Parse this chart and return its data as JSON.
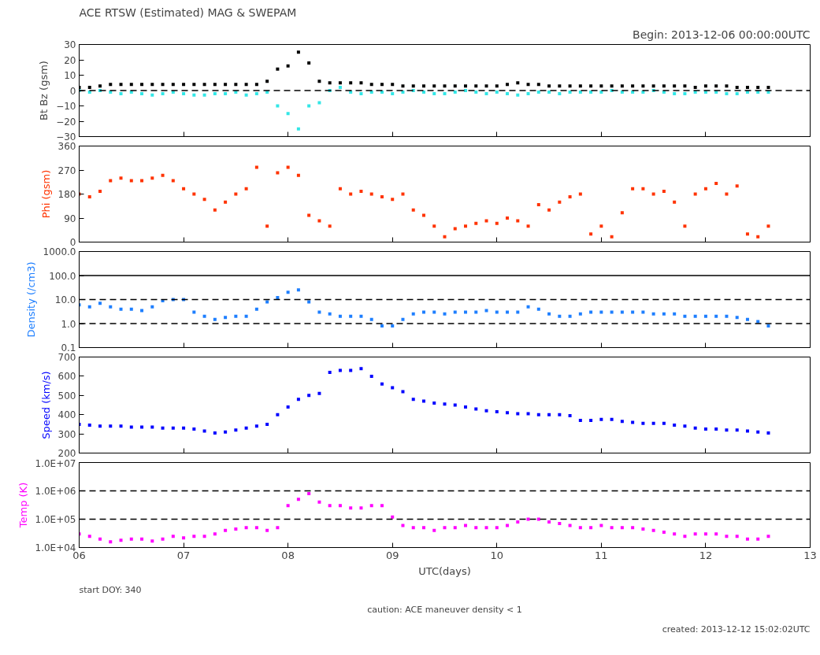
{
  "chart_data": [
    {
      "type": "scatter",
      "title": "ACE RTSW (Estimated) MAG & SWEPAM",
      "subtitle": "Begin: 2013-12-06 00:00:00UTC",
      "ylabel": "Bt Bz (gsm)",
      "marker": "square",
      "grid": false,
      "tick_labels": "y",
      "x": [
        6.0,
        6.1,
        6.2,
        6.3,
        6.4,
        6.5,
        6.6,
        6.7,
        6.8,
        6.9,
        7.0,
        7.1,
        7.2,
        7.3,
        7.4,
        7.5,
        7.6,
        7.7,
        7.8,
        7.9,
        8.0,
        8.1,
        8.2,
        8.3,
        8.4,
        8.5,
        8.6,
        8.7,
        8.8,
        8.9,
        9.0,
        9.1,
        9.2,
        9.3,
        9.4,
        9.5,
        9.6,
        9.7,
        9.8,
        9.9,
        10.0,
        10.1,
        10.2,
        10.3,
        10.4,
        10.5,
        10.6,
        10.7,
        10.8,
        10.9,
        11.0,
        11.1,
        11.2,
        11.3,
        11.4,
        11.5,
        11.6,
        11.7,
        11.8,
        11.9,
        12.0,
        12.1,
        12.2,
        12.3,
        12.4,
        12.5,
        12.6
      ],
      "xlim": [
        6,
        13
      ],
      "xticks": [
        6,
        7,
        8,
        9,
        10,
        11,
        12,
        13
      ],
      "ylim": [
        -30,
        30
      ],
      "yticks": [
        -30,
        -20,
        -10,
        0,
        10,
        20,
        30
      ],
      "ref_lines": [
        {
          "axis": "y",
          "value": 0,
          "line_style": "dashed",
          "color": "#000000"
        }
      ],
      "series": [
        {
          "color": "#000000",
          "values": [
            2,
            2,
            3,
            4,
            4,
            4,
            4,
            4,
            4,
            4,
            4,
            4,
            4,
            4,
            4,
            4,
            4,
            4,
            6,
            14,
            16,
            25,
            18,
            6,
            5,
            5,
            5,
            5,
            4,
            4,
            4,
            3,
            3,
            3,
            3,
            3,
            3,
            3,
            3,
            3,
            3,
            4,
            5,
            4,
            4,
            3,
            3,
            3,
            3,
            3,
            3,
            3,
            3,
            3,
            3,
            3,
            3,
            3,
            3,
            2,
            3,
            3,
            3,
            2,
            2,
            2,
            2
          ]
        },
        {
          "color": "#33e6e6",
          "values": [
            0,
            -1,
            0,
            -1,
            -2,
            -1,
            -2,
            -3,
            -2,
            -1,
            -2,
            -3,
            -3,
            -2,
            -2,
            -1,
            -3,
            -2,
            -1,
            -10,
            -15,
            -25,
            -10,
            -8,
            0,
            2,
            -1,
            -2,
            -1,
            -1,
            -2,
            -1,
            0,
            -1,
            -2,
            -2,
            -1,
            0,
            -1,
            -2,
            -1,
            -2,
            -3,
            -2,
            -1,
            -1,
            -2,
            -1,
            -1,
            -1,
            -1,
            0,
            -1,
            -1,
            -1,
            0,
            -1,
            -2,
            -2,
            -1,
            -1,
            -1,
            -2,
            -2,
            -1,
            -1,
            -1
          ]
        }
      ]
    },
    {
      "type": "scatter",
      "ylabel": "Phi (gsm)",
      "marker": "square",
      "grid": false,
      "tick_labels": "y",
      "x": [
        6.0,
        6.1,
        6.2,
        6.3,
        6.4,
        6.5,
        6.6,
        6.7,
        6.8,
        6.9,
        7.0,
        7.1,
        7.2,
        7.3,
        7.4,
        7.5,
        7.6,
        7.7,
        7.8,
        7.9,
        8.0,
        8.1,
        8.2,
        8.3,
        8.4,
        8.5,
        8.6,
        8.7,
        8.8,
        8.9,
        9.0,
        9.1,
        9.2,
        9.3,
        9.4,
        9.5,
        9.6,
        9.7,
        9.8,
        9.9,
        10.0,
        10.1,
        10.2,
        10.3,
        10.4,
        10.5,
        10.6,
        10.7,
        10.8,
        10.9,
        11.0,
        11.1,
        11.2,
        11.3,
        11.4,
        11.5,
        11.6,
        11.7,
        11.8,
        11.9,
        12.0,
        12.1,
        12.2,
        12.3,
        12.4,
        12.5,
        12.6
      ],
      "xlim": [
        6,
        13
      ],
      "xticks": [
        6,
        7,
        8,
        9,
        10,
        11,
        12,
        13
      ],
      "ylim": [
        0,
        360
      ],
      "yticks": [
        0,
        90,
        180,
        270,
        360
      ],
      "series": [
        {
          "color": "#ff3300",
          "values": [
            180,
            170,
            190,
            230,
            240,
            230,
            230,
            240,
            250,
            230,
            200,
            180,
            160,
            120,
            150,
            180,
            200,
            280,
            60,
            260,
            280,
            250,
            100,
            80,
            60,
            200,
            180,
            190,
            180,
            170,
            160,
            180,
            120,
            100,
            60,
            20,
            50,
            60,
            70,
            80,
            70,
            90,
            80,
            60,
            140,
            120,
            150,
            170,
            180,
            30,
            60,
            20,
            110,
            200,
            200,
            180,
            190,
            150,
            60,
            180,
            200,
            220,
            180,
            210,
            30,
            20,
            60
          ]
        }
      ]
    },
    {
      "type": "scatter",
      "ylabel": "Density (/cm3)",
      "marker": "square",
      "grid": false,
      "tick_labels": "y",
      "log": "y",
      "x": [
        6.0,
        6.1,
        6.2,
        6.3,
        6.4,
        6.5,
        6.6,
        6.7,
        6.8,
        6.9,
        7.0,
        7.1,
        7.2,
        7.3,
        7.4,
        7.5,
        7.6,
        7.7,
        7.8,
        7.9,
        8.0,
        8.1,
        8.2,
        8.3,
        8.4,
        8.5,
        8.6,
        8.7,
        8.8,
        8.9,
        9.0,
        9.1,
        9.2,
        9.3,
        9.4,
        9.5,
        9.6,
        9.7,
        9.8,
        9.9,
        10.0,
        10.1,
        10.2,
        10.3,
        10.4,
        10.5,
        10.6,
        10.7,
        10.8,
        10.9,
        11.0,
        11.1,
        11.2,
        11.3,
        11.4,
        11.5,
        11.6,
        11.7,
        11.8,
        11.9,
        12.0,
        12.1,
        12.2,
        12.3,
        12.4,
        12.5,
        12.6
      ],
      "xlim": [
        6,
        13
      ],
      "xticks": [
        6,
        7,
        8,
        9,
        10,
        11,
        12,
        13
      ],
      "ylim": [
        0.1,
        1000
      ],
      "yticks": [
        {
          "value": 0.1,
          "label": "0.1"
        },
        {
          "value": 1,
          "label": "1.0"
        },
        {
          "value": 10,
          "label": "10.0"
        },
        {
          "value": 100,
          "label": "100.0"
        },
        {
          "value": 1000,
          "label": "1000.0"
        }
      ],
      "ref_lines": [
        {
          "axis": "y",
          "value": 1,
          "line_style": "dashed",
          "color": "#000000"
        },
        {
          "axis": "y",
          "value": 10,
          "line_style": "dashed",
          "color": "#000000"
        },
        {
          "axis": "y",
          "value": 100,
          "line_style": "solid",
          "color": "#000000"
        }
      ],
      "series": [
        {
          "color": "#1e7fff",
          "values": [
            6,
            5,
            7,
            5,
            4,
            4,
            3.5,
            5,
            9,
            10,
            10,
            3,
            2,
            1.5,
            1.8,
            2,
            2,
            4,
            8,
            12,
            20,
            25,
            8,
            3,
            2.5,
            2,
            2,
            2,
            1.5,
            0.8,
            0.8,
            1.5,
            2.5,
            3,
            3,
            2.5,
            3,
            3,
            3,
            3.5,
            3,
            3,
            3,
            5,
            4,
            2.5,
            2,
            2,
            2.5,
            3,
            3,
            3,
            3,
            3,
            3,
            2.5,
            2.5,
            2.5,
            2,
            2,
            2,
            2,
            2,
            1.8,
            1.5,
            1.2,
            0.8
          ]
        }
      ]
    },
    {
      "type": "scatter",
      "ylabel": "Speed (km/s)",
      "marker": "square",
      "grid": false,
      "tick_labels": "y",
      "x": [
        6.0,
        6.1,
        6.2,
        6.3,
        6.4,
        6.5,
        6.6,
        6.7,
        6.8,
        6.9,
        7.0,
        7.1,
        7.2,
        7.3,
        7.4,
        7.5,
        7.6,
        7.7,
        7.8,
        7.9,
        8.0,
        8.1,
        8.2,
        8.3,
        8.4,
        8.5,
        8.6,
        8.7,
        8.8,
        8.9,
        9.0,
        9.1,
        9.2,
        9.3,
        9.4,
        9.5,
        9.6,
        9.7,
        9.8,
        9.9,
        10.0,
        10.1,
        10.2,
        10.3,
        10.4,
        10.5,
        10.6,
        10.7,
        10.8,
        10.9,
        11.0,
        11.1,
        11.2,
        11.3,
        11.4,
        11.5,
        11.6,
        11.7,
        11.8,
        11.9,
        12.0,
        12.1,
        12.2,
        12.3,
        12.4,
        12.5,
        12.6
      ],
      "xlim": [
        6,
        13
      ],
      "xticks": [
        6,
        7,
        8,
        9,
        10,
        11,
        12,
        13
      ],
      "ylim": [
        200,
        700
      ],
      "yticks": [
        200,
        300,
        400,
        500,
        600,
        700
      ],
      "series": [
        {
          "color": "#0000ff",
          "values": [
            350,
            345,
            340,
            340,
            340,
            335,
            335,
            335,
            330,
            330,
            330,
            325,
            315,
            305,
            310,
            320,
            330,
            340,
            350,
            400,
            440,
            480,
            500,
            510,
            620,
            630,
            630,
            640,
            600,
            560,
            540,
            520,
            480,
            470,
            460,
            455,
            450,
            440,
            430,
            420,
            415,
            410,
            405,
            405,
            400,
            400,
            400,
            395,
            370,
            370,
            375,
            375,
            365,
            360,
            355,
            355,
            355,
            345,
            340,
            330,
            325,
            325,
            320,
            320,
            315,
            310,
            305
          ]
        }
      ]
    },
    {
      "type": "scatter",
      "ylabel": "Temp (K)",
      "xlabel": "UTC(days)",
      "marker": "square",
      "grid": false,
      "log": "y",
      "annotations": [
        "start DOY: 340",
        "caution: ACE maneuver density < 1",
        "created: 2013-12-12 15:02:02UTC"
      ],
      "x": [
        6.0,
        6.1,
        6.2,
        6.3,
        6.4,
        6.5,
        6.6,
        6.7,
        6.8,
        6.9,
        7.0,
        7.1,
        7.2,
        7.3,
        7.4,
        7.5,
        7.6,
        7.7,
        7.8,
        7.9,
        8.0,
        8.1,
        8.2,
        8.3,
        8.4,
        8.5,
        8.6,
        8.7,
        8.8,
        8.9,
        9.0,
        9.1,
        9.2,
        9.3,
        9.4,
        9.5,
        9.6,
        9.7,
        9.8,
        9.9,
        10.0,
        10.1,
        10.2,
        10.3,
        10.4,
        10.5,
        10.6,
        10.7,
        10.8,
        10.9,
        11.0,
        11.1,
        11.2,
        11.3,
        11.4,
        11.5,
        11.6,
        11.7,
        11.8,
        11.9,
        12.0,
        12.1,
        12.2,
        12.3,
        12.4,
        12.5,
        12.6
      ],
      "xlim": [
        6,
        13
      ],
      "xticks": [
        {
          "value": 6,
          "label": "06"
        },
        {
          "value": 7,
          "label": "07"
        },
        {
          "value": 8,
          "label": "08"
        },
        {
          "value": 9,
          "label": "09"
        },
        10,
        11,
        12,
        13
      ],
      "ylim": [
        10000,
        10000000
      ],
      "yticks": [
        {
          "value": 10000,
          "label": "1.0E+04"
        },
        {
          "value": 100000,
          "label": "1.0E+05"
        },
        {
          "value": 1000000,
          "label": "1.0E+06"
        },
        {
          "value": 10000000,
          "label": "1.0E+07"
        }
      ],
      "ref_lines": [
        {
          "axis": "y",
          "value": 100000,
          "line_style": "dashed",
          "color": "#000000"
        },
        {
          "axis": "y",
          "value": 1000000,
          "line_style": "dashed",
          "color": "#000000"
        }
      ],
      "series": [
        {
          "color": "#ff00ff",
          "values": [
            30000,
            25000,
            20000,
            16000,
            18000,
            20000,
            20000,
            17000,
            20000,
            25000,
            22000,
            25000,
            25000,
            30000,
            40000,
            45000,
            50000,
            50000,
            40000,
            50000,
            300000,
            500000,
            800000,
            400000,
            300000,
            300000,
            250000,
            250000,
            300000,
            300000,
            120000,
            60000,
            50000,
            50000,
            40000,
            50000,
            50000,
            60000,
            50000,
            50000,
            50000,
            60000,
            80000,
            100000,
            100000,
            80000,
            70000,
            60000,
            50000,
            50000,
            60000,
            50000,
            50000,
            50000,
            45000,
            40000,
            35000,
            30000,
            25000,
            30000,
            30000,
            30000,
            25000,
            25000,
            20000,
            20000,
            25000
          ]
        }
      ]
    }
  ]
}
